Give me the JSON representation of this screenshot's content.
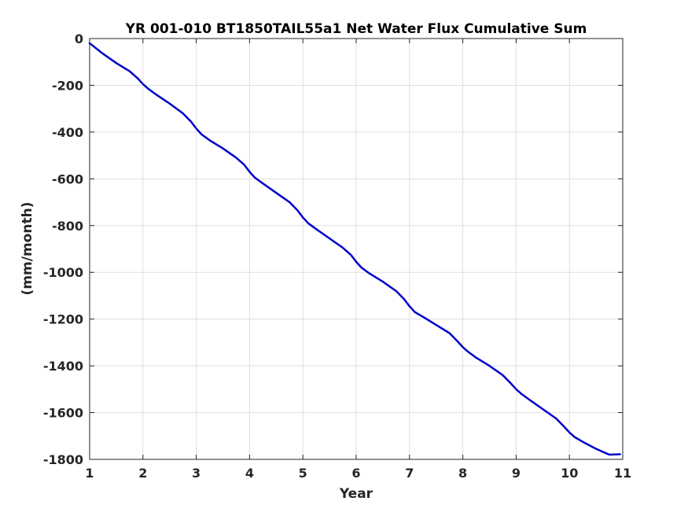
{
  "chart_data": {
    "type": "line",
    "title": "YR 001-010 BT1850TAIL55a1 Net Water Flux Cumulative Sum",
    "xlabel": "Year",
    "ylabel": "(mm/month)",
    "xlim": [
      1,
      11
    ],
    "ylim": [
      -1800,
      0
    ],
    "xticks": [
      1,
      2,
      3,
      4,
      5,
      6,
      7,
      8,
      9,
      10,
      11
    ],
    "xtick_labels": [
      "1",
      "2",
      "3",
      "4",
      "5",
      "6",
      "7",
      "8",
      "9",
      "10",
      "11"
    ],
    "yticks": [
      0,
      -200,
      -400,
      -600,
      -800,
      -1000,
      -1200,
      -1400,
      -1600,
      -1800
    ],
    "ytick_labels": [
      "0",
      "-200",
      "-400",
      "-600",
      "-800",
      "-1000",
      "-1200",
      "-1400",
      "-1600",
      "-1800"
    ],
    "grid": true,
    "line_color": "#0000cc",
    "series": [
      {
        "x": [
          1.0,
          1.25,
          1.5,
          1.75,
          1.9,
          2.0,
          2.1,
          2.25,
          2.5,
          2.75,
          2.9,
          3.0,
          3.1,
          3.25,
          3.5,
          3.75,
          3.9,
          4.0,
          4.1,
          4.25,
          4.5,
          4.75,
          4.9,
          5.0,
          5.1,
          5.25,
          5.5,
          5.75,
          5.9,
          6.0,
          6.1,
          6.25,
          6.5,
          6.75,
          6.9,
          7.0,
          7.1,
          7.25,
          7.5,
          7.75,
          7.9,
          8.0,
          8.1,
          8.25,
          8.5,
          8.75,
          8.9,
          9.0,
          9.1,
          9.25,
          9.5,
          9.75,
          9.9,
          10.0,
          10.1,
          10.25,
          10.5,
          10.75,
          10.95
        ],
        "y": [
          -20,
          -65,
          -105,
          -140,
          -170,
          -195,
          -215,
          -240,
          -278,
          -320,
          -355,
          -385,
          -410,
          -435,
          -470,
          -510,
          -540,
          -570,
          -595,
          -620,
          -660,
          -700,
          -735,
          -765,
          -790,
          -815,
          -855,
          -895,
          -925,
          -955,
          -980,
          -1005,
          -1040,
          -1080,
          -1115,
          -1145,
          -1170,
          -1190,
          -1225,
          -1260,
          -1295,
          -1320,
          -1340,
          -1365,
          -1400,
          -1440,
          -1475,
          -1500,
          -1520,
          -1545,
          -1585,
          -1625,
          -1660,
          -1685,
          -1705,
          -1725,
          -1755,
          -1780,
          -1778
        ]
      }
    ]
  }
}
